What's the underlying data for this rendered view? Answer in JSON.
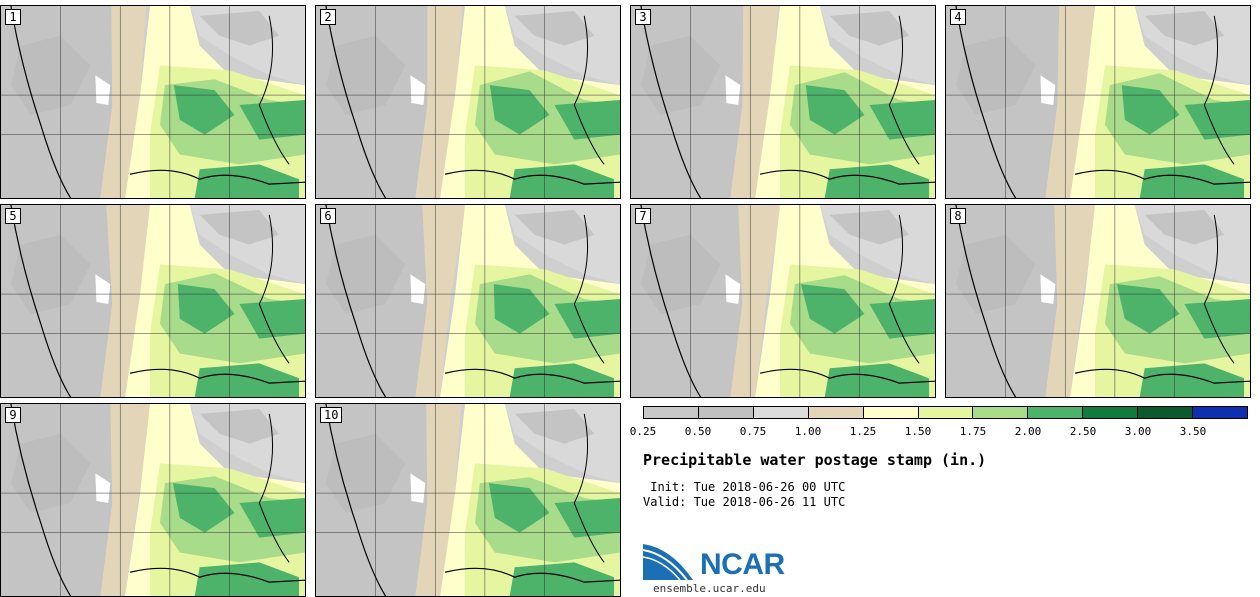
{
  "panels": [
    {
      "label": "1"
    },
    {
      "label": "2"
    },
    {
      "label": "3"
    },
    {
      "label": "4"
    },
    {
      "label": "5"
    },
    {
      "label": "6"
    },
    {
      "label": "7"
    },
    {
      "label": "8"
    },
    {
      "label": "9"
    },
    {
      "label": "10"
    }
  ],
  "colorbar": {
    "colors": [
      "#c8c8c8",
      "#c0c0c0",
      "#dcdcdc",
      "#e3d6b8",
      "#ffffcc",
      "#e6f5a0",
      "#a8db8a",
      "#4db36a",
      "#117a3e",
      "#0b5a2e",
      "#0d2fb0"
    ],
    "labels": [
      "0.25",
      "0.50",
      "0.75",
      "1.00",
      "1.25",
      "1.50",
      "1.75",
      "2.00",
      "2.50",
      "3.00",
      "3.50"
    ]
  },
  "title": "Precipitable water postage stamp (in.)",
  "init": " Init: Tue 2018-06-26 00 UTC",
  "valid": "Valid: Tue 2018-06-26 11 UTC",
  "logo": {
    "text": "NCAR",
    "site": "ensemble.ucar.edu",
    "color": "#1a6fb5"
  }
}
